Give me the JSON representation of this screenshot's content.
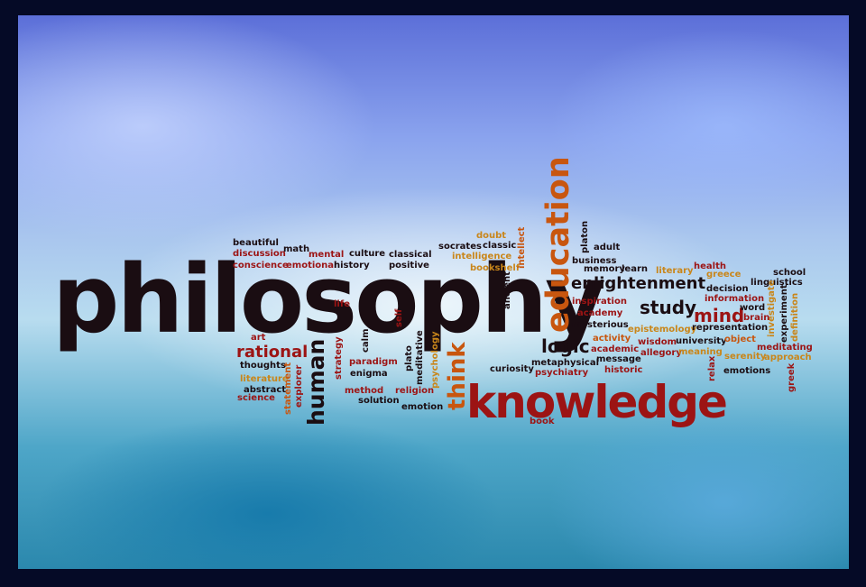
{
  "colors": {
    "dark": "#1a0d12",
    "red": "#9c1414",
    "orange": "#c8560f",
    "gold": "#c9861a"
  },
  "words": {
    "philosophy": "philosophy",
    "knowledge": "knowledge",
    "education": "education",
    "enlightenment": "enlightenment",
    "think": "think",
    "human": "human",
    "rational": "rational",
    "logic": "logic",
    "study": "study",
    "mind": "mind",
    "beautiful": "beautiful",
    "discussion": "discussion",
    "conscience": "conscience",
    "math": "math",
    "mental": "mental",
    "emotional": "emotional",
    "culture": "culture",
    "history": "history",
    "classical": "classical",
    "positive": "positive",
    "socrates": "socrates",
    "classic": "classic",
    "doubt": "doubt",
    "intelligence": "intelligence",
    "bookshelf": "bookshelf",
    "intellect": "intellect",
    "ancient": "ancient",
    "platon": "platon",
    "adult": "adult",
    "business": "business",
    "memory": "memory",
    "learn": "learn",
    "literary": "literary",
    "health": "health",
    "greece": "greece",
    "school": "school",
    "linguistics": "linguistics",
    "inspiration": "inspiration",
    "academy": "academy",
    "mysterious": "mysterious",
    "decision": "decision",
    "information": "information",
    "word": "word",
    "brain": "brain",
    "investigate": "investigate",
    "experiment": "experiment",
    "definition": "definition",
    "epistemology": "epistemology",
    "representation": "representation",
    "activity": "activity",
    "wisdom": "wisdom",
    "university": "university",
    "object": "object",
    "meditating": "meditating",
    "academic": "academic",
    "allegory": "allegory",
    "meaning": "meaning",
    "message": "message",
    "serenity": "serenity",
    "approach": "approach",
    "metaphysical": "metaphysical",
    "historic": "historic",
    "relax": "relax",
    "emotions": "emotions",
    "greek": "greek",
    "curiosity": "curiosity",
    "psychiatry": "psychiatry",
    "book": "book",
    "art": "art",
    "thoughts": "thoughts",
    "literature": "literature",
    "abstract": "abstract",
    "science": "science",
    "statement": "statement",
    "explorer": "explorer",
    "strategy": "strategy",
    "calm": "calm",
    "paradigm": "paradigm",
    "enigma": "enigma",
    "method": "method",
    "religion": "religion",
    "solution": "solution",
    "emotion": "emotion",
    "life": "life",
    "self": "self",
    "plato": "plato",
    "meditative": "meditative",
    "psychology": "psychology"
  }
}
